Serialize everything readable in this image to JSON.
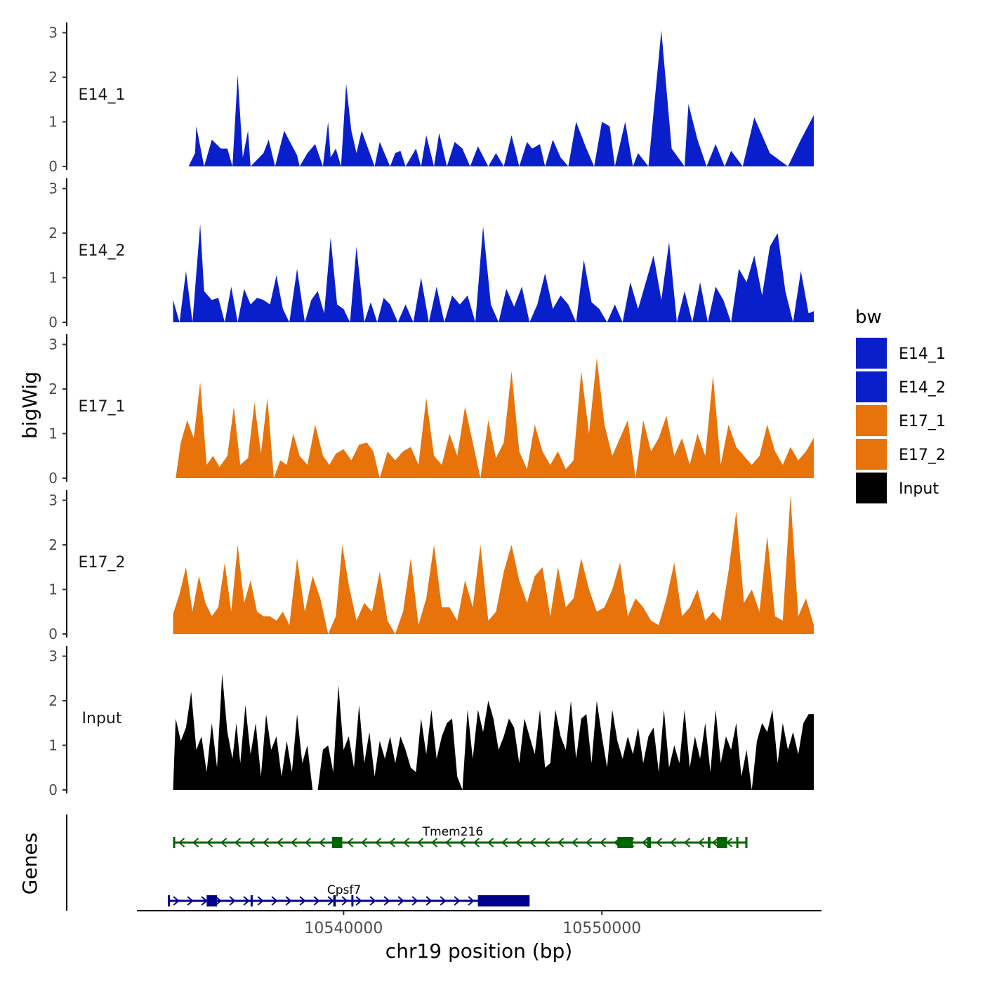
{
  "chart_data": {
    "type": "area",
    "title": "",
    "xlabel": "chr19 position (bp)",
    "ylabel": "bigWig",
    "genes_label": "Genes",
    "xlim": [
      10532000,
      10558500
    ],
    "x_ticks": [
      10540000,
      10550000
    ],
    "x_tick_labels": [
      "10540000",
      "10550000"
    ],
    "ylim": [
      0,
      3.15
    ],
    "y_ticks": [
      0,
      1,
      2,
      3
    ],
    "legend": {
      "title": "bw",
      "position": "right",
      "entries": [
        {
          "label": "E14_1",
          "color": "#0a1fcc"
        },
        {
          "label": "E14_2",
          "color": "#0a1fcc"
        },
        {
          "label": "E17_1",
          "color": "#e8730a"
        },
        {
          "label": "E17_2",
          "color": "#e8730a"
        },
        {
          "label": "Input",
          "color": "#000000"
        }
      ]
    },
    "tracks": [
      {
        "name": "E14_1",
        "color": "#0a1fcc",
        "x": [
          10534000,
          10534250,
          10534300,
          10534600,
          10534900,
          10535250,
          10535500,
          10535700,
          10535900,
          10536100,
          10536300,
          10536400,
          10536900,
          10537100,
          10537350,
          10537700,
          10538200,
          10538300,
          10538600,
          10538900,
          10539200,
          10539400,
          10539500,
          10539700,
          10539900,
          10540100,
          10540300,
          10540500,
          10540700,
          10541200,
          10541400,
          10541800,
          10542000,
          10542200,
          10542400,
          10542800,
          10543000,
          10543200,
          10543500,
          10543700,
          10544000,
          10544300,
          10544600,
          10544900,
          10545200,
          10545600,
          10545900,
          10546200,
          10546500,
          10546800,
          10547100,
          10547300,
          10547600,
          10547800,
          10548100,
          10548400,
          10548700,
          10549000,
          10549400,
          10549700,
          10550000,
          10550300,
          10550500,
          10550900,
          10551200,
          10551400,
          10551800,
          10552300,
          10552700,
          10553200,
          10553350,
          10553700,
          10554050,
          10554400,
          10554750,
          10555000,
          10555450,
          10555900,
          10556500,
          10557200,
          10557700,
          10558200
        ],
        "y": [
          0,
          0.3,
          0.9,
          0,
          0.6,
          0.4,
          0.4,
          0,
          2.05,
          0.2,
          0.8,
          0,
          0.3,
          0.6,
          0,
          0.8,
          0.25,
          0,
          0.3,
          0.5,
          0,
          1.0,
          0.2,
          0.4,
          0,
          1.85,
          0.8,
          0.3,
          0.8,
          0,
          0.55,
          0,
          0.3,
          0.35,
          0,
          0.4,
          0,
          0.7,
          0,
          0.75,
          0,
          0.55,
          0.4,
          0,
          0.45,
          0,
          0.3,
          0,
          0.7,
          0,
          0.55,
          0.4,
          0.5,
          0,
          0.6,
          0.2,
          0,
          1.0,
          0.4,
          0,
          1.0,
          0.9,
          0,
          1.0,
          0,
          0.3,
          0,
          3.05,
          0.4,
          0,
          1.4,
          0.6,
          0,
          0.5,
          0,
          0.35,
          0,
          1.1,
          0.3,
          0,
          0.6,
          1.15
        ]
      },
      {
        "name": "E14_2",
        "color": "#0a1fcc",
        "x": [
          10533400,
          10533650,
          10533900,
          10534150,
          10534450,
          10534600,
          10534900,
          10535150,
          10535400,
          10535650,
          10535900,
          10536150,
          10536400,
          10536650,
          10536900,
          10537150,
          10537400,
          10537650,
          10537900,
          10538200,
          10538500,
          10538750,
          10539000,
          10539250,
          10539500,
          10539750,
          10540000,
          10540250,
          10540500,
          10540800,
          10541050,
          10541300,
          10541550,
          10541800,
          10542100,
          10542400,
          10542700,
          10543000,
          10543300,
          10543600,
          10543900,
          10544200,
          10544500,
          10544800,
          10545100,
          10545400,
          10545700,
          10546000,
          10546300,
          10546600,
          10546900,
          10547200,
          10547500,
          10547800,
          10548100,
          10548400,
          10548700,
          10549000,
          10549300,
          10549600,
          10549900,
          10550200,
          10550500,
          10550800,
          10551100,
          10551400,
          10551700,
          10552000,
          10552300,
          10552600,
          10552900,
          10553200,
          10553500,
          10553800,
          10554100,
          10554400,
          10554700,
          10555000,
          10555300,
          10555600,
          10555900,
          10556200,
          10556500,
          10556800,
          10557100,
          10557400,
          10557700,
          10558000,
          10558200
        ],
        "y": [
          0.5,
          0,
          1.15,
          0,
          2.2,
          0.7,
          0.5,
          0.55,
          0,
          0.8,
          0,
          0.75,
          0.4,
          0.55,
          0.5,
          0.4,
          1.05,
          0.3,
          0,
          1.2,
          0,
          0.5,
          0.7,
          0.2,
          1.9,
          0.4,
          0.3,
          0,
          1.7,
          0,
          0.45,
          0,
          0.55,
          0.4,
          0,
          0.4,
          0,
          1.0,
          0,
          0.8,
          0,
          0.6,
          0.4,
          0.6,
          0,
          2.15,
          0.4,
          0,
          0.75,
          0.35,
          0.8,
          0,
          0.4,
          1.1,
          0.3,
          0.6,
          0.4,
          0,
          1.4,
          0.45,
          0.3,
          0,
          0.4,
          0,
          0.9,
          0.3,
          0.9,
          1.5,
          0.5,
          1.8,
          0,
          0.7,
          0,
          0.9,
          0,
          0.8,
          0.5,
          0,
          1.2,
          0.9,
          1.5,
          0.6,
          1.7,
          2.0,
          0.7,
          0,
          1.15,
          0.2,
          0.25
        ]
      },
      {
        "name": "E17_1",
        "color": "#e8730a",
        "x": [
          10533500,
          10533700,
          10533950,
          10534200,
          10534450,
          10534700,
          10534950,
          10535200,
          10535500,
          10535750,
          10536000,
          10536300,
          10536550,
          10536800,
          10537050,
          10537300,
          10537550,
          10537800,
          10538050,
          10538300,
          10538600,
          10538900,
          10539200,
          10539450,
          10539700,
          10540000,
          10540300,
          10540600,
          10540900,
          10541150,
          10541400,
          10541700,
          10542000,
          10542300,
          10542600,
          10542900,
          10543200,
          10543500,
          10543800,
          10544100,
          10544400,
          10544700,
          10545000,
          10545300,
          10545600,
          10545900,
          10546200,
          10546500,
          10546800,
          10547100,
          10547400,
          10547700,
          10548000,
          10548300,
          10548600,
          10548900,
          10549200,
          10549500,
          10549800,
          10550100,
          10550400,
          10550700,
          10551000,
          10551300,
          10551600,
          10551900,
          10552200,
          10552500,
          10552800,
          10553100,
          10553400,
          10553700,
          10554000,
          10554300,
          10554600,
          10554900,
          10555200,
          10555500,
          10555800,
          10556100,
          10556400,
          10556700,
          10557000,
          10557300,
          10557600,
          10557900,
          10558200
        ],
        "y": [
          0,
          0.8,
          1.3,
          0.9,
          2.15,
          0.3,
          0.5,
          0.25,
          0.5,
          1.6,
          0.3,
          0.45,
          1.7,
          0.55,
          1.8,
          0,
          0.4,
          0.3,
          1.0,
          0.5,
          0.3,
          1.2,
          0.5,
          0.3,
          0.55,
          0.65,
          0.4,
          0.75,
          0.8,
          0.6,
          0,
          0.6,
          0.4,
          0.6,
          0.7,
          0.3,
          1.8,
          0.5,
          0.3,
          1.0,
          0.5,
          1.6,
          0.8,
          0,
          1.3,
          0.45,
          0.8,
          2.4,
          0.6,
          0.2,
          1.2,
          0.6,
          0.3,
          0.6,
          0.2,
          0.4,
          2.4,
          1.0,
          2.7,
          1.2,
          0.5,
          0.9,
          1.3,
          0,
          1.3,
          0.6,
          0.9,
          1.4,
          0.5,
          0.9,
          0.3,
          1.0,
          0.5,
          2.3,
          0.3,
          1.2,
          0.7,
          0.5,
          0.3,
          0.5,
          1.2,
          0.6,
          0.3,
          0.7,
          0.4,
          0.6,
          0.9
        ]
      },
      {
        "name": "E17_2",
        "color": "#e8730a",
        "x": [
          10533400,
          10533650,
          10533900,
          10534150,
          10534400,
          10534650,
          10534900,
          10535150,
          10535400,
          10535650,
          10535900,
          10536150,
          10536400,
          10536650,
          10536900,
          10537150,
          10537400,
          10537650,
          10537900,
          10538200,
          10538500,
          10538800,
          10539100,
          10539400,
          10539700,
          10539950,
          10540200,
          10540500,
          10540800,
          10541100,
          10541400,
          10541700,
          10542000,
          10542300,
          10542600,
          10542900,
          10543200,
          10543500,
          10543800,
          10544100,
          10544400,
          10544700,
          10545000,
          10545300,
          10545600,
          10545900,
          10546200,
          10546500,
          10546800,
          10547100,
          10547400,
          10547700,
          10548000,
          10548300,
          10548600,
          10548900,
          10549200,
          10549500,
          10549800,
          10550100,
          10550400,
          10550700,
          10551000,
          10551300,
          10551600,
          10551900,
          10552200,
          10552500,
          10552800,
          10553100,
          10553400,
          10553700,
          10554000,
          10554300,
          10554600,
          10554900,
          10555200,
          10555500,
          10555800,
          10556100,
          10556400,
          10556700,
          10557000,
          10557300,
          10557600,
          10557900,
          10558200
        ],
        "y": [
          0.45,
          0.9,
          1.5,
          0.5,
          1.3,
          0.7,
          0.4,
          0.6,
          1.6,
          0.5,
          2.0,
          0.7,
          1.2,
          0.5,
          0.4,
          0.4,
          0.3,
          0.5,
          0.2,
          1.7,
          0.5,
          1.3,
          0.8,
          0,
          0.4,
          2.0,
          1.1,
          0.3,
          0.7,
          0.5,
          1.4,
          0.3,
          0,
          0.5,
          1.7,
          0.2,
          0.8,
          2.0,
          0.6,
          0.6,
          0.3,
          1.2,
          0.6,
          2.0,
          0.3,
          0.5,
          1.4,
          2.0,
          1.2,
          0.7,
          1.3,
          1.5,
          0.4,
          1.5,
          0.6,
          0.8,
          1.7,
          1.0,
          0.5,
          0.6,
          1.0,
          1.6,
          0.4,
          0.8,
          0.6,
          0.3,
          0.2,
          0.8,
          1.6,
          0.4,
          0.6,
          1.0,
          0.3,
          0.5,
          0.3,
          1.4,
          2.75,
          0.7,
          1.0,
          0.5,
          2.2,
          0.4,
          0.3,
          3.1,
          0.4,
          0.8,
          0.2
        ]
      },
      {
        "name": "Input",
        "color": "#000000",
        "x": [
          10533400,
          10533500,
          10533700,
          10533900,
          10534100,
          10534300,
          10534500,
          10534700,
          10534900,
          10535100,
          10535300,
          10535500,
          10535700,
          10535850,
          10536000,
          10536200,
          10536400,
          10536600,
          10536800,
          10537000,
          10537200,
          10537400,
          10537600,
          10537800,
          10538000,
          10538200,
          10538400,
          10538600,
          10538800,
          10539000,
          10539200,
          10539400,
          10539600,
          10539800,
          10540000,
          10540200,
          10540400,
          10540600,
          10540800,
          10541000,
          10541200,
          10541400,
          10541600,
          10541800,
          10542000,
          10542200,
          10542400,
          10542600,
          10542800,
          10543000,
          10543200,
          10543400,
          10543600,
          10543800,
          10544000,
          10544200,
          10544400,
          10544600,
          10544800,
          10545000,
          10545200,
          10545400,
          10545600,
          10545800,
          10546000,
          10546200,
          10546400,
          10546600,
          10546800,
          10547000,
          10547200,
          10547400,
          10547600,
          10547800,
          10548000,
          10548200,
          10548400,
          10548600,
          10548800,
          10549000,
          10549200,
          10549400,
          10549600,
          10549800,
          10550000,
          10550200,
          10550400,
          10550600,
          10550800,
          10551000,
          10551200,
          10551400,
          10551600,
          10551800,
          10552000,
          10552200,
          10552400,
          10552600,
          10552800,
          10553000,
          10553200,
          10553400,
          10553600,
          10553800,
          10554000,
          10554200,
          10554400,
          10554600,
          10554800,
          10555000,
          10555200,
          10555400,
          10555600,
          10555800,
          10556000,
          10556200,
          10556400,
          10556600,
          10556800,
          10557000,
          10557200,
          10557400,
          10557600,
          10557800,
          10558000,
          10558200
        ],
        "y": [
          0,
          1.6,
          1.1,
          1.4,
          2.2,
          0.9,
          1.2,
          0.4,
          1.5,
          0.5,
          2.6,
          1.3,
          0.7,
          1.5,
          0.6,
          1.9,
          0.8,
          1.5,
          0.3,
          1.7,
          0.9,
          1.2,
          0.3,
          1.1,
          0.4,
          1.7,
          0.6,
          1.0,
          0,
          0,
          0.9,
          1.0,
          0.4,
          2.35,
          0.9,
          1.2,
          0.5,
          1.9,
          0.6,
          1.3,
          0.3,
          1.1,
          0.7,
          1.2,
          0.6,
          1.2,
          0.9,
          0.5,
          0.4,
          1.6,
          0.8,
          1.8,
          0.7,
          1.2,
          1.5,
          1.6,
          0.3,
          0,
          1.8,
          0.7,
          1.8,
          1.3,
          2.0,
          1.6,
          0.9,
          1.2,
          1.6,
          1.4,
          0.6,
          1.6,
          1.2,
          0.8,
          1.8,
          0.5,
          0.6,
          1.8,
          1.2,
          0.9,
          2.0,
          0.7,
          1.6,
          1.7,
          0.6,
          2.0,
          1.2,
          0.5,
          1.8,
          1.1,
          0.7,
          1.2,
          0.8,
          1.4,
          0.6,
          1.2,
          1.4,
          0.4,
          1.8,
          0.5,
          1.0,
          0.6,
          1.8,
          0.5,
          1.2,
          0.7,
          1.5,
          0.4,
          1.8,
          0.6,
          1.2,
          0.9,
          1.5,
          0.3,
          0.9,
          0,
          1.1,
          1.5,
          1.3,
          1.8,
          0.6,
          1.5,
          0.9,
          1.3,
          0.8,
          1.5,
          1.7,
          1.7
        ]
      }
    ],
    "genes": [
      {
        "name": "Tmem216",
        "strand": "-",
        "color": "#006400",
        "start": 10533400,
        "end": 10555600,
        "exons": [
          [
            10533400,
            10533450
          ],
          [
            10539550,
            10539950
          ],
          [
            10550600,
            10551200
          ],
          [
            10551750,
            10551900
          ],
          [
            10554100,
            10554200
          ],
          [
            10554450,
            10554850
          ],
          [
            10555200,
            10555250
          ],
          [
            10555550,
            10555600
          ]
        ]
      },
      {
        "name": "Cpsf7",
        "strand": "+",
        "color": "#00008b",
        "start": 10533200,
        "end": 10547200,
        "exons": [
          [
            10533200,
            10533250
          ],
          [
            10534700,
            10535100
          ],
          [
            10536400,
            10536450
          ],
          [
            10539600,
            10539700
          ],
          [
            10540300,
            10540350
          ],
          [
            10545200,
            10547200
          ]
        ]
      }
    ]
  }
}
